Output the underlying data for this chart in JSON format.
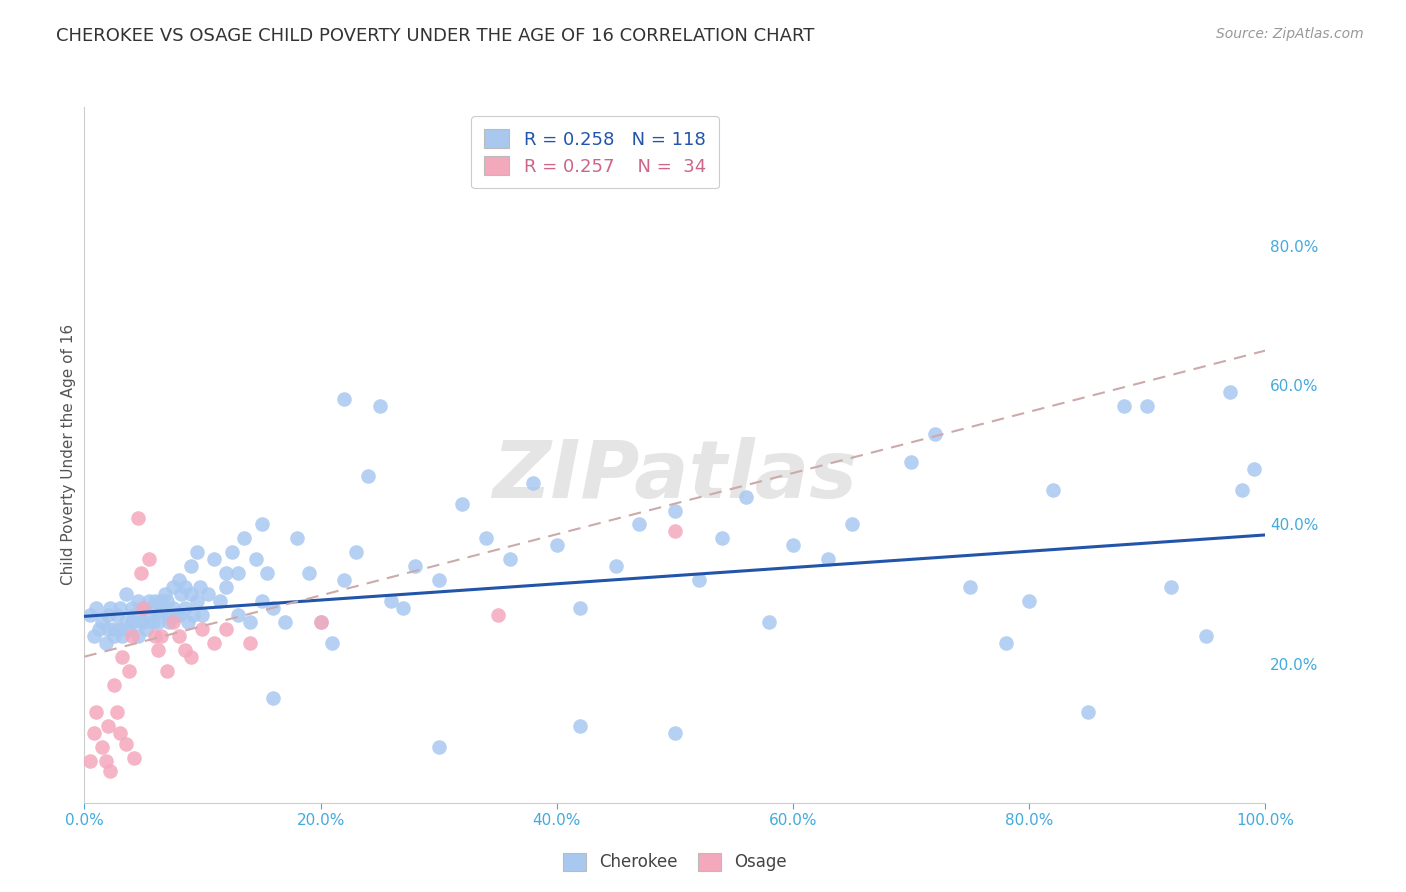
{
  "title": "CHEROKEE VS OSAGE CHILD POVERTY UNDER THE AGE OF 16 CORRELATION CHART",
  "source": "Source: ZipAtlas.com",
  "ylabel": "Child Poverty Under the Age of 16",
  "cherokee_R": 0.258,
  "cherokee_N": 118,
  "osage_R": 0.257,
  "osage_N": 34,
  "cherokee_color": "#a8c8f0",
  "cherokee_line_color": "#2255aa",
  "osage_color": "#f4a8bc",
  "osage_line_color": "#cc6688",
  "watermark": "ZIPatlas",
  "title_fontsize": 13,
  "source_fontsize": 10,
  "background_color": "#ffffff",
  "grid_color": "#dddddd",
  "xlim": [
    0,
    1.0
  ],
  "ylim": [
    0,
    1.0
  ],
  "xticks": [
    0.0,
    0.2,
    0.4,
    0.6,
    0.8,
    1.0
  ],
  "yticks_right": [
    0.2,
    0.4,
    0.6,
    0.8
  ],
  "xticklabels": [
    "0.0%",
    "20.0%",
    "40.0%",
    "60.0%",
    "80.0%",
    "100.0%"
  ],
  "yticklabels_right": [
    "20.0%",
    "40.0%",
    "60.0%",
    "80.0%"
  ],
  "cherokee_x": [
    0.005,
    0.008,
    0.01,
    0.012,
    0.015,
    0.018,
    0.02,
    0.02,
    0.022,
    0.025,
    0.025,
    0.028,
    0.03,
    0.03,
    0.032,
    0.035,
    0.035,
    0.038,
    0.04,
    0.04,
    0.042,
    0.045,
    0.045,
    0.048,
    0.05,
    0.05,
    0.052,
    0.055,
    0.055,
    0.058,
    0.06,
    0.06,
    0.062,
    0.065,
    0.065,
    0.068,
    0.07,
    0.07,
    0.072,
    0.075,
    0.075,
    0.078,
    0.08,
    0.08,
    0.082,
    0.085,
    0.085,
    0.088,
    0.09,
    0.09,
    0.092,
    0.095,
    0.095,
    0.098,
    0.1,
    0.105,
    0.11,
    0.115,
    0.12,
    0.12,
    0.125,
    0.13,
    0.13,
    0.135,
    0.14,
    0.145,
    0.15,
    0.15,
    0.155,
    0.16,
    0.17,
    0.18,
    0.19,
    0.2,
    0.21,
    0.22,
    0.23,
    0.24,
    0.26,
    0.27,
    0.28,
    0.3,
    0.32,
    0.34,
    0.36,
    0.38,
    0.4,
    0.42,
    0.45,
    0.47,
    0.5,
    0.52,
    0.54,
    0.56,
    0.58,
    0.6,
    0.63,
    0.65,
    0.7,
    0.72,
    0.75,
    0.78,
    0.8,
    0.82,
    0.85,
    0.88,
    0.9,
    0.92,
    0.95,
    0.97,
    0.98,
    0.99,
    0.22,
    0.25,
    0.16,
    0.3,
    0.42,
    0.5
  ],
  "cherokee_y": [
    0.27,
    0.24,
    0.28,
    0.25,
    0.26,
    0.23,
    0.27,
    0.25,
    0.28,
    0.25,
    0.24,
    0.27,
    0.28,
    0.25,
    0.24,
    0.26,
    0.3,
    0.25,
    0.26,
    0.28,
    0.27,
    0.24,
    0.29,
    0.26,
    0.26,
    0.28,
    0.25,
    0.29,
    0.27,
    0.26,
    0.29,
    0.28,
    0.26,
    0.275,
    0.29,
    0.3,
    0.27,
    0.29,
    0.26,
    0.31,
    0.28,
    0.27,
    0.32,
    0.27,
    0.3,
    0.31,
    0.28,
    0.26,
    0.3,
    0.34,
    0.27,
    0.36,
    0.29,
    0.31,
    0.27,
    0.3,
    0.35,
    0.29,
    0.33,
    0.31,
    0.36,
    0.27,
    0.33,
    0.38,
    0.26,
    0.35,
    0.29,
    0.4,
    0.33,
    0.28,
    0.26,
    0.38,
    0.33,
    0.26,
    0.23,
    0.32,
    0.36,
    0.47,
    0.29,
    0.28,
    0.34,
    0.32,
    0.43,
    0.38,
    0.35,
    0.46,
    0.37,
    0.28,
    0.34,
    0.4,
    0.42,
    0.32,
    0.38,
    0.44,
    0.26,
    0.37,
    0.35,
    0.4,
    0.49,
    0.53,
    0.31,
    0.23,
    0.29,
    0.45,
    0.13,
    0.57,
    0.57,
    0.31,
    0.24,
    0.59,
    0.45,
    0.48,
    0.58,
    0.57,
    0.15,
    0.08,
    0.11,
    0.1
  ],
  "osage_x": [
    0.005,
    0.008,
    0.01,
    0.015,
    0.018,
    0.02,
    0.022,
    0.025,
    0.028,
    0.03,
    0.032,
    0.035,
    0.038,
    0.04,
    0.042,
    0.045,
    0.048,
    0.05,
    0.055,
    0.06,
    0.062,
    0.065,
    0.07,
    0.075,
    0.08,
    0.085,
    0.09,
    0.1,
    0.11,
    0.12,
    0.14,
    0.2,
    0.35,
    0.5
  ],
  "osage_y": [
    0.06,
    0.1,
    0.13,
    0.08,
    0.06,
    0.11,
    0.045,
    0.17,
    0.13,
    0.1,
    0.21,
    0.085,
    0.19,
    0.24,
    0.065,
    0.41,
    0.33,
    0.28,
    0.35,
    0.24,
    0.22,
    0.24,
    0.19,
    0.26,
    0.24,
    0.22,
    0.21,
    0.25,
    0.23,
    0.25,
    0.23,
    0.26,
    0.27,
    0.39
  ]
}
